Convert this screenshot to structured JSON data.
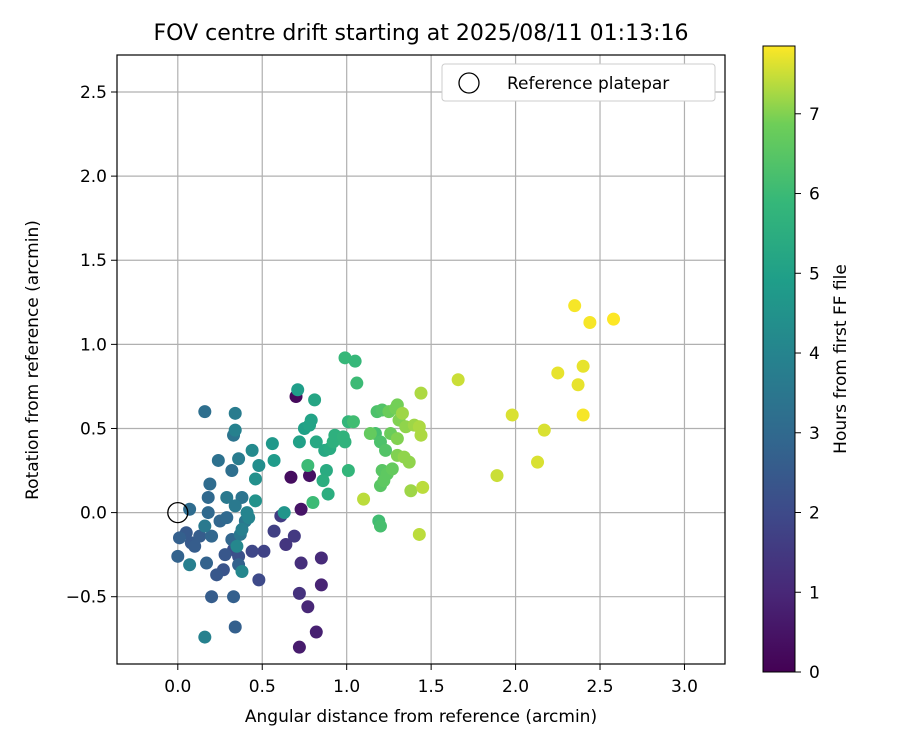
{
  "chart_data": {
    "type": "scatter",
    "title": "FOV centre drift starting at 2025/08/11 01:13:16",
    "xlabel": "Angular distance from reference (arcmin)",
    "ylabel": "Rotation from reference (arcmin)",
    "xlim": [
      -0.36,
      3.24
    ],
    "ylim": [
      -0.9,
      2.72
    ],
    "xticks": [
      0.0,
      0.5,
      1.0,
      1.5,
      2.0,
      2.5,
      3.0
    ],
    "xtick_labels": [
      "0.0",
      "0.5",
      "1.0",
      "1.5",
      "2.0",
      "2.5",
      "3.0"
    ],
    "yticks": [
      -0.5,
      0.0,
      0.5,
      1.0,
      1.5,
      2.0,
      2.5
    ],
    "ytick_labels": [
      "−0.5",
      "0.0",
      "0.5",
      "1.0",
      "1.5",
      "2.0",
      "2.5"
    ],
    "grid": true,
    "legend": {
      "placement": "top-right",
      "entries": [
        "Reference platepar"
      ]
    },
    "reference_point": {
      "x": 0.0,
      "y": 0.0
    },
    "colorbar": {
      "label": "Hours from first FF file",
      "range": [
        0,
        7.85
      ],
      "ticks": [
        0,
        1,
        2,
        3,
        4,
        5,
        6,
        7
      ],
      "tick_labels": [
        "0",
        "1",
        "2",
        "3",
        "4",
        "5",
        "6",
        "7"
      ],
      "colormap": "viridis"
    },
    "points": [
      {
        "x": 0.7,
        "y": 0.69,
        "h": 0.2
      },
      {
        "x": 0.67,
        "y": 0.21,
        "h": 0.3
      },
      {
        "x": 0.78,
        "y": 0.22,
        "h": 0.4
      },
      {
        "x": 0.73,
        "y": 0.02,
        "h": 0.5
      },
      {
        "x": 0.72,
        "y": -0.8,
        "h": 0.7
      },
      {
        "x": 0.82,
        "y": -0.71,
        "h": 0.8
      },
      {
        "x": 0.85,
        "y": -0.43,
        "h": 0.9
      },
      {
        "x": 0.77,
        "y": -0.56,
        "h": 1.0
      },
      {
        "x": 0.85,
        "y": -0.27,
        "h": 1.1
      },
      {
        "x": 0.73,
        "y": -0.3,
        "h": 1.2
      },
      {
        "x": 0.72,
        "y": -0.48,
        "h": 1.3
      },
      {
        "x": 0.64,
        "y": -0.19,
        "h": 1.4
      },
      {
        "x": 0.69,
        "y": -0.14,
        "h": 1.5
      },
      {
        "x": 0.61,
        "y": -0.02,
        "h": 1.6
      },
      {
        "x": 0.57,
        "y": -0.11,
        "h": 1.7
      },
      {
        "x": 0.51,
        "y": -0.23,
        "h": 1.8
      },
      {
        "x": 0.44,
        "y": -0.23,
        "h": 1.9
      },
      {
        "x": 0.48,
        "y": -0.4,
        "h": 2.0
      },
      {
        "x": 0.33,
        "y": -0.22,
        "h": 2.1
      },
      {
        "x": 0.36,
        "y": -0.26,
        "h": 2.2
      },
      {
        "x": 0.27,
        "y": -0.34,
        "h": 2.3
      },
      {
        "x": 0.23,
        "y": -0.37,
        "h": 2.4
      },
      {
        "x": 0.28,
        "y": -0.25,
        "h": 2.4
      },
      {
        "x": 0.08,
        "y": -0.18,
        "h": 2.5
      },
      {
        "x": 0.05,
        "y": -0.12,
        "h": 2.5
      },
      {
        "x": 0.1,
        "y": -0.2,
        "h": 2.6
      },
      {
        "x": 0.13,
        "y": -0.14,
        "h": 2.6
      },
      {
        "x": 0.2,
        "y": -0.5,
        "h": 2.6
      },
      {
        "x": 0.33,
        "y": -0.5,
        "h": 2.7
      },
      {
        "x": 0.34,
        "y": -0.68,
        "h": 2.7
      },
      {
        "x": 0.01,
        "y": -0.15,
        "h": 2.7
      },
      {
        "x": 0.0,
        "y": -0.26,
        "h": 2.8
      },
      {
        "x": 0.17,
        "y": -0.3,
        "h": 2.8
      },
      {
        "x": 0.36,
        "y": -0.31,
        "h": 2.8
      },
      {
        "x": 0.2,
        "y": -0.14,
        "h": 2.9
      },
      {
        "x": 0.25,
        "y": -0.05,
        "h": 2.9
      },
      {
        "x": 0.32,
        "y": -0.16,
        "h": 2.9
      },
      {
        "x": 0.29,
        "y": -0.03,
        "h": 3.0
      },
      {
        "x": 0.18,
        "y": 0.0,
        "h": 3.0
      },
      {
        "x": 0.18,
        "y": 0.09,
        "h": 3.0
      },
      {
        "x": 0.19,
        "y": 0.17,
        "h": 3.1
      },
      {
        "x": 0.07,
        "y": 0.02,
        "h": 3.1
      },
      {
        "x": 0.16,
        "y": 0.6,
        "h": 3.2
      },
      {
        "x": 0.32,
        "y": 0.25,
        "h": 3.2
      },
      {
        "x": 0.24,
        "y": 0.31,
        "h": 3.3
      },
      {
        "x": 0.33,
        "y": 0.46,
        "h": 3.4
      },
      {
        "x": 0.38,
        "y": 0.09,
        "h": 3.4
      },
      {
        "x": 0.37,
        "y": -0.13,
        "h": 3.5
      },
      {
        "x": 0.4,
        "y": -0.05,
        "h": 3.5
      },
      {
        "x": 0.34,
        "y": 0.04,
        "h": 3.6
      },
      {
        "x": 0.29,
        "y": 0.09,
        "h": 3.6
      },
      {
        "x": 0.16,
        "y": -0.08,
        "h": 3.6
      },
      {
        "x": 0.34,
        "y": 0.59,
        "h": 3.7
      },
      {
        "x": 0.36,
        "y": 0.32,
        "h": 3.7
      },
      {
        "x": 0.38,
        "y": -0.1,
        "h": 3.8
      },
      {
        "x": 0.07,
        "y": -0.31,
        "h": 3.8
      },
      {
        "x": 0.16,
        "y": -0.74,
        "h": 3.9
      },
      {
        "x": 0.34,
        "y": 0.49,
        "h": 3.9
      },
      {
        "x": 0.41,
        "y": 0.0,
        "h": 4.0
      },
      {
        "x": 0.42,
        "y": -0.03,
        "h": 4.0
      },
      {
        "x": 0.35,
        "y": -0.2,
        "h": 4.1
      },
      {
        "x": 0.38,
        "y": -0.35,
        "h": 4.1
      },
      {
        "x": 0.44,
        "y": 0.37,
        "h": 4.2
      },
      {
        "x": 0.48,
        "y": 0.28,
        "h": 4.3
      },
      {
        "x": 0.46,
        "y": 0.2,
        "h": 4.4
      },
      {
        "x": 0.46,
        "y": 0.07,
        "h": 4.5
      },
      {
        "x": 0.63,
        "y": 0.0,
        "h": 4.6
      },
      {
        "x": 0.56,
        "y": 0.41,
        "h": 4.7
      },
      {
        "x": 0.57,
        "y": 0.31,
        "h": 4.8
      },
      {
        "x": 0.71,
        "y": 0.73,
        "h": 4.9
      },
      {
        "x": 0.72,
        "y": 0.42,
        "h": 5.0
      },
      {
        "x": 0.75,
        "y": 0.5,
        "h": 5.0
      },
      {
        "x": 0.78,
        "y": 0.52,
        "h": 5.1
      },
      {
        "x": 0.79,
        "y": 0.55,
        "h": 5.1
      },
      {
        "x": 0.81,
        "y": 0.67,
        "h": 5.2
      },
      {
        "x": 0.82,
        "y": 0.42,
        "h": 5.3
      },
      {
        "x": 0.87,
        "y": 0.37,
        "h": 5.3
      },
      {
        "x": 0.9,
        "y": 0.38,
        "h": 5.4
      },
      {
        "x": 0.88,
        "y": 0.25,
        "h": 5.4
      },
      {
        "x": 0.86,
        "y": 0.19,
        "h": 5.5
      },
      {
        "x": 0.89,
        "y": 0.11,
        "h": 5.5
      },
      {
        "x": 0.92,
        "y": 0.42,
        "h": 5.6
      },
      {
        "x": 0.93,
        "y": 0.46,
        "h": 5.6
      },
      {
        "x": 0.98,
        "y": 0.45,
        "h": 5.7
      },
      {
        "x": 0.99,
        "y": 0.42,
        "h": 5.7
      },
      {
        "x": 1.01,
        "y": 0.54,
        "h": 5.8
      },
      {
        "x": 1.01,
        "y": 0.25,
        "h": 5.8
      },
      {
        "x": 0.99,
        "y": 0.92,
        "h": 5.9
      },
      {
        "x": 1.05,
        "y": 0.9,
        "h": 5.9
      },
      {
        "x": 1.06,
        "y": 0.77,
        "h": 6.0
      },
      {
        "x": 0.77,
        "y": 0.28,
        "h": 6.0
      },
      {
        "x": 0.8,
        "y": 0.06,
        "h": 6.0
      },
      {
        "x": 1.04,
        "y": 0.54,
        "h": 6.1
      },
      {
        "x": 1.19,
        "y": -0.05,
        "h": 6.1
      },
      {
        "x": 1.2,
        "y": -0.08,
        "h": 6.2
      },
      {
        "x": 1.17,
        "y": 0.47,
        "h": 6.2
      },
      {
        "x": 1.2,
        "y": 0.42,
        "h": 6.3
      },
      {
        "x": 1.18,
        "y": 0.6,
        "h": 6.3
      },
      {
        "x": 1.21,
        "y": 0.61,
        "h": 6.4
      },
      {
        "x": 1.23,
        "y": 0.37,
        "h": 6.4
      },
      {
        "x": 1.21,
        "y": 0.25,
        "h": 6.5
      },
      {
        "x": 1.2,
        "y": 0.16,
        "h": 6.5
      },
      {
        "x": 1.22,
        "y": 0.19,
        "h": 6.6
      },
      {
        "x": 1.24,
        "y": 0.23,
        "h": 6.6
      },
      {
        "x": 1.14,
        "y": 0.47,
        "h": 6.7
      },
      {
        "x": 1.27,
        "y": 0.26,
        "h": 6.7
      },
      {
        "x": 1.26,
        "y": 0.47,
        "h": 6.8
      },
      {
        "x": 1.25,
        "y": 0.6,
        "h": 6.8
      },
      {
        "x": 1.29,
        "y": 0.62,
        "h": 6.9
      },
      {
        "x": 1.3,
        "y": 0.64,
        "h": 6.9
      },
      {
        "x": 1.31,
        "y": 0.55,
        "h": 7.0
      },
      {
        "x": 1.3,
        "y": 0.44,
        "h": 7.0
      },
      {
        "x": 1.3,
        "y": 0.34,
        "h": 7.0
      },
      {
        "x": 1.34,
        "y": 0.33,
        "h": 7.1
      },
      {
        "x": 1.35,
        "y": 0.51,
        "h": 7.1
      },
      {
        "x": 1.37,
        "y": 0.3,
        "h": 7.1
      },
      {
        "x": 1.33,
        "y": 0.59,
        "h": 7.2
      },
      {
        "x": 1.38,
        "y": 0.13,
        "h": 7.2
      },
      {
        "x": 1.4,
        "y": 0.52,
        "h": 7.2
      },
      {
        "x": 1.43,
        "y": 0.51,
        "h": 7.3
      },
      {
        "x": 1.44,
        "y": 0.46,
        "h": 7.3
      },
      {
        "x": 1.44,
        "y": 0.71,
        "h": 7.3
      },
      {
        "x": 1.45,
        "y": 0.15,
        "h": 7.4
      },
      {
        "x": 1.43,
        "y": -0.13,
        "h": 7.4
      },
      {
        "x": 1.1,
        "y": 0.08,
        "h": 7.4
      },
      {
        "x": 1.66,
        "y": 0.79,
        "h": 7.5
      },
      {
        "x": 1.89,
        "y": 0.22,
        "h": 7.5
      },
      {
        "x": 1.98,
        "y": 0.58,
        "h": 7.6
      },
      {
        "x": 2.13,
        "y": 0.3,
        "h": 7.6
      },
      {
        "x": 2.17,
        "y": 0.49,
        "h": 7.6
      },
      {
        "x": 2.25,
        "y": 0.83,
        "h": 7.7
      },
      {
        "x": 2.37,
        "y": 0.76,
        "h": 7.7
      },
      {
        "x": 2.4,
        "y": 0.87,
        "h": 7.7
      },
      {
        "x": 2.4,
        "y": 0.58,
        "h": 7.8
      },
      {
        "x": 2.35,
        "y": 1.23,
        "h": 7.8
      },
      {
        "x": 2.44,
        "y": 1.13,
        "h": 7.8
      },
      {
        "x": 2.58,
        "y": 1.15,
        "h": 7.85
      }
    ]
  }
}
